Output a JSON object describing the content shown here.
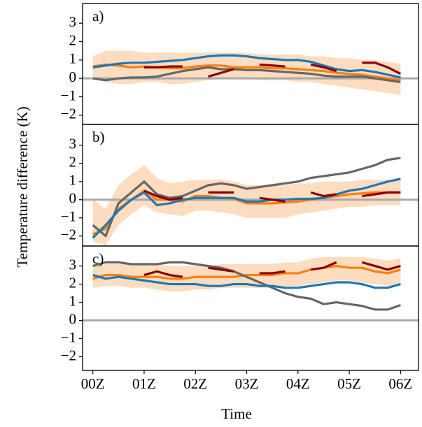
{
  "chart_data": [
    {
      "type": "line",
      "panel_label": "a)",
      "xlim": [
        -0.2,
        6.35
      ],
      "ylim": [
        -2.5,
        4.07
      ],
      "yticks": [
        {
          "value": -2,
          "label": "−2"
        },
        {
          "value": -1,
          "label": "−1"
        },
        0,
        1,
        2,
        3
      ],
      "reference_line": 0,
      "x": [
        0,
        0.25,
        0.5,
        0.75,
        1,
        1.25,
        1.5,
        1.75,
        2,
        2.25,
        2.5,
        2.75,
        3,
        3.25,
        3.5,
        3.75,
        4,
        4.25,
        4.5,
        4.75,
        5,
        5.25,
        5.5,
        5.75,
        6
      ],
      "band": {
        "color": "#fddcbf",
        "upper": [
          1.2,
          1.5,
          1.5,
          1.5,
          1.4,
          1.4,
          1.4,
          1.4,
          1.4,
          1.4,
          1.4,
          1.4,
          1.4,
          1.3,
          1.3,
          1.3,
          1.3,
          1.2,
          1.2,
          1.1,
          1.1,
          1.0,
          1.0,
          0.9,
          0.8
        ],
        "lower": [
          0.0,
          -0.2,
          -0.3,
          -0.3,
          -0.2,
          -0.2,
          -0.3,
          -0.3,
          -0.2,
          -0.1,
          0.0,
          0.0,
          0.0,
          -0.1,
          -0.1,
          -0.1,
          -0.2,
          -0.2,
          -0.3,
          -0.4,
          -0.5,
          -0.6,
          -0.7,
          -0.8,
          -0.9
        ]
      },
      "series": [
        {
          "color": "#ff7f0e",
          "values": [
            0.65,
            0.75,
            0.7,
            0.6,
            0.65,
            0.6,
            0.55,
            0.55,
            0.65,
            0.7,
            0.7,
            0.6,
            0.6,
            0.6,
            0.55,
            0.55,
            0.5,
            0.45,
            0.4,
            0.3,
            0.25,
            0.2,
            0.1,
            0.0,
            -0.1
          ]
        },
        {
          "color": "#666666",
          "values": [
            0.0,
            -0.1,
            0.0,
            0.05,
            0.05,
            0.1,
            0.25,
            0.4,
            0.5,
            0.6,
            0.5,
            0.5,
            0.45,
            0.45,
            0.4,
            0.35,
            0.3,
            0.25,
            0.15,
            0.1,
            0.1,
            0.1,
            0.0,
            -0.1,
            -0.2
          ]
        },
        {
          "color": "#1f77b4",
          "values": [
            0.6,
            0.7,
            0.8,
            0.85,
            0.85,
            0.9,
            0.95,
            1.0,
            1.1,
            1.2,
            1.25,
            1.25,
            1.2,
            1.1,
            1.05,
            1.0,
            1.0,
            0.9,
            0.7,
            0.5,
            0.4,
            0.45,
            0.35,
            0.2,
            0.05
          ]
        },
        {
          "color": "#8b0000",
          "values": [
            null,
            null,
            null,
            null,
            0.6,
            0.6,
            0.65,
            0.65,
            null,
            0.1,
            0.3,
            0.5,
            null,
            0.75,
            0.7,
            0.65,
            null,
            0.75,
            0.6,
            0.4,
            null,
            0.85,
            0.85,
            0.6,
            0.25
          ]
        }
      ]
    },
    {
      "type": "line",
      "panel_label": "b)",
      "ylabel": "Temperature difference (K)",
      "xlim": [
        -0.2,
        6.35
      ],
      "ylim": [
        -2.55,
        4.15
      ],
      "yticks": [
        {
          "value": -2,
          "label": "−2"
        },
        {
          "value": -1,
          "label": "−1"
        },
        0,
        1,
        2,
        3
      ],
      "reference_line": 0,
      "x": [
        0,
        0.25,
        0.5,
        0.75,
        1,
        1.25,
        1.5,
        1.75,
        2,
        2.25,
        2.5,
        2.75,
        3,
        3.25,
        3.5,
        3.75,
        4,
        4.25,
        4.5,
        4.75,
        5,
        5.25,
        5.5,
        5.75,
        6
      ],
      "band": {
        "color": "#fddcbf",
        "upper": [
          0.0,
          -0.5,
          0.8,
          1.4,
          1.9,
          1.2,
          0.9,
          1.0,
          1.1,
          1.1,
          1.1,
          1.0,
          0.8,
          0.8,
          0.8,
          0.8,
          0.9,
          0.9,
          1.0,
          1.0,
          1.0,
          1.1,
          1.1,
          1.1,
          1.1
        ],
        "lower": [
          -2.3,
          -2.5,
          -1.4,
          -0.8,
          -0.3,
          -0.7,
          -0.8,
          -0.9,
          -0.6,
          -0.6,
          -0.7,
          -0.8,
          -1.0,
          -1.0,
          -1.0,
          -1.0,
          -0.8,
          -0.7,
          -0.6,
          -0.5,
          -0.4,
          -0.4,
          -0.3,
          -0.3,
          -0.3
        ]
      },
      "series": [
        {
          "color": "#ff7f0e",
          "values": [
            -1.9,
            -1.6,
            -0.5,
            0.0,
            0.5,
            0.0,
            0.0,
            -0.1,
            0.2,
            0.2,
            0.1,
            0.05,
            -0.2,
            -0.2,
            -0.2,
            -0.15,
            -0.1,
            0.0,
            0.1,
            0.2,
            0.3,
            0.35,
            0.4,
            0.4,
            0.4
          ]
        },
        {
          "color": "#666666",
          "values": [
            -1.4,
            -2.0,
            -0.2,
            0.4,
            1.0,
            0.3,
            0.1,
            0.2,
            0.5,
            0.8,
            0.9,
            0.8,
            0.6,
            0.7,
            0.8,
            0.9,
            1.0,
            1.2,
            1.3,
            1.4,
            1.5,
            1.7,
            1.9,
            2.2,
            2.3
          ]
        },
        {
          "color": "#1f77b4",
          "values": [
            -2.1,
            -1.4,
            -0.6,
            0.0,
            0.4,
            -0.3,
            -0.2,
            0.0,
            0.1,
            0.1,
            0.1,
            0.1,
            -0.1,
            -0.1,
            0.0,
            0.0,
            0.05,
            0.05,
            0.1,
            0.3,
            0.5,
            0.6,
            0.8,
            1.0,
            1.15
          ]
        },
        {
          "color": "#8b0000",
          "values": [
            null,
            null,
            null,
            null,
            0.5,
            0.2,
            0.0,
            0.1,
            null,
            0.4,
            0.4,
            0.4,
            null,
            0.1,
            0.0,
            -0.1,
            null,
            0.4,
            0.2,
            0.3,
            null,
            0.2,
            0.3,
            0.4,
            0.4
          ]
        }
      ]
    },
    {
      "type": "line",
      "panel_label": "c)",
      "xlabel": "Time",
      "xlim": [
        -0.2,
        6.35
      ],
      "ylim": [
        -2.75,
        4.1
      ],
      "xticks": [
        {
          "value": 0,
          "label": "00Z"
        },
        {
          "value": 1,
          "label": "01Z"
        },
        {
          "value": 2,
          "label": "02Z"
        },
        {
          "value": 3,
          "label": "03Z"
        },
        {
          "value": 4,
          "label": "04Z"
        },
        {
          "value": 5,
          "label": "05Z"
        },
        {
          "value": 6,
          "label": "06Z"
        }
      ],
      "yticks": [
        {
          "value": -2,
          "label": "−2"
        },
        {
          "value": -1,
          "label": "−1"
        },
        0,
        1,
        2,
        3
      ],
      "reference_line": 0,
      "x": [
        0,
        0.25,
        0.5,
        0.75,
        1,
        1.25,
        1.5,
        1.75,
        2,
        2.25,
        2.5,
        2.75,
        3,
        3.25,
        3.5,
        3.75,
        4,
        4.25,
        4.5,
        4.75,
        5,
        5.25,
        5.5,
        5.75,
        6
      ],
      "band": {
        "color": "#fddcbf",
        "upper": [
          3.0,
          3.1,
          3.1,
          3.1,
          3.1,
          3.1,
          3.0,
          3.0,
          3.0,
          3.0,
          3.1,
          3.1,
          3.1,
          3.1,
          3.1,
          3.2,
          3.2,
          3.4,
          3.5,
          3.5,
          3.5,
          3.5,
          3.4,
          3.3,
          3.4
        ],
        "lower": [
          1.8,
          1.9,
          1.9,
          1.8,
          1.8,
          1.7,
          1.6,
          1.6,
          1.7,
          1.7,
          1.8,
          1.8,
          1.8,
          1.8,
          1.8,
          1.9,
          1.9,
          2.0,
          2.1,
          2.2,
          2.2,
          2.1,
          2.0,
          1.9,
          2.0
        ]
      },
      "series": [
        {
          "color": "#ff7f0e",
          "values": [
            2.3,
            2.5,
            2.5,
            2.4,
            2.4,
            2.4,
            2.3,
            2.3,
            2.4,
            2.4,
            2.4,
            2.4,
            2.5,
            2.5,
            2.5,
            2.6,
            2.6,
            2.8,
            2.9,
            3.0,
            2.9,
            2.9,
            2.7,
            2.6,
            2.8
          ]
        },
        {
          "color": "#666666",
          "values": [
            3.0,
            3.2,
            3.2,
            3.1,
            3.1,
            3.1,
            3.2,
            3.2,
            3.1,
            3.0,
            2.9,
            2.7,
            2.4,
            2.1,
            1.8,
            1.5,
            1.3,
            1.2,
            0.9,
            1.0,
            0.9,
            0.8,
            0.6,
            0.6,
            0.85
          ]
        },
        {
          "color": "#1f77b4",
          "values": [
            2.5,
            2.3,
            2.4,
            2.3,
            2.2,
            2.1,
            2.0,
            2.0,
            2.0,
            1.9,
            1.9,
            2.0,
            2.0,
            1.9,
            1.9,
            1.8,
            1.8,
            1.9,
            2.0,
            2.1,
            2.1,
            2.0,
            1.8,
            1.8,
            2.0
          ]
        },
        {
          "color": "#8b0000",
          "values": [
            null,
            null,
            null,
            null,
            2.5,
            2.7,
            2.5,
            2.4,
            null,
            2.9,
            2.8,
            2.7,
            null,
            2.6,
            2.6,
            2.7,
            null,
            2.8,
            2.9,
            3.2,
            null,
            3.2,
            3.0,
            2.8,
            3.0
          ]
        }
      ]
    }
  ]
}
